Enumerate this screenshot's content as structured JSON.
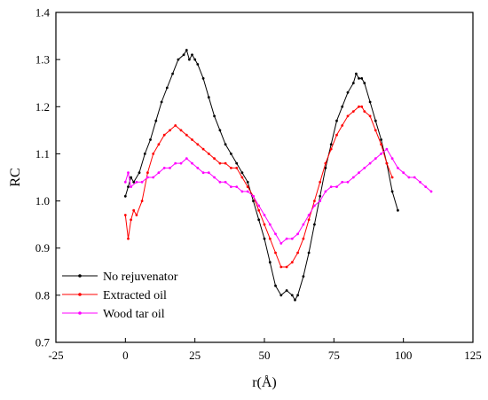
{
  "chart_data": {
    "type": "line",
    "title": "",
    "xlabel": "r(Å)",
    "ylabel": "RC",
    "xlim": [
      -25,
      125
    ],
    "ylim": [
      0.7,
      1.4
    ],
    "xticks": [
      "-25",
      "0",
      "25",
      "50",
      "75",
      "100",
      "125"
    ],
    "yticks": [
      "0.7",
      "0.8",
      "0.9",
      "1.0",
      "1.1",
      "1.2",
      "1.3",
      "1.4"
    ],
    "grid": false,
    "legend": "bottom-left",
    "series": [
      {
        "name": "No rejuvenator",
        "color": "#000000",
        "x": [
          0,
          1,
          2,
          3,
          5,
          7,
          9,
          11,
          13,
          15,
          17,
          19,
          21,
          22,
          23,
          24,
          25,
          26,
          28,
          30,
          32,
          34,
          36,
          38,
          40,
          42,
          44,
          46,
          48,
          50,
          52,
          54,
          56,
          58,
          60,
          61,
          62,
          64,
          66,
          68,
          70,
          72,
          74,
          76,
          78,
          80,
          82,
          83,
          84,
          85,
          86,
          88,
          90,
          92,
          94,
          96,
          98
        ],
        "y": [
          1.01,
          1.03,
          1.05,
          1.04,
          1.06,
          1.1,
          1.13,
          1.17,
          1.21,
          1.24,
          1.27,
          1.3,
          1.31,
          1.32,
          1.3,
          1.31,
          1.3,
          1.29,
          1.26,
          1.22,
          1.18,
          1.15,
          1.12,
          1.1,
          1.08,
          1.06,
          1.04,
          1.0,
          0.96,
          0.92,
          0.87,
          0.82,
          0.8,
          0.81,
          0.8,
          0.79,
          0.8,
          0.84,
          0.89,
          0.95,
          1.01,
          1.07,
          1.12,
          1.17,
          1.2,
          1.23,
          1.25,
          1.27,
          1.26,
          1.26,
          1.25,
          1.21,
          1.17,
          1.13,
          1.08,
          1.02,
          0.98
        ]
      },
      {
        "name": "Extracted oil",
        "color": "#ff0000",
        "x": [
          0,
          1,
          2,
          3,
          4,
          6,
          8,
          10,
          12,
          14,
          16,
          18,
          20,
          22,
          24,
          26,
          28,
          30,
          32,
          34,
          36,
          38,
          40,
          42,
          44,
          46,
          48,
          50,
          52,
          54,
          56,
          58,
          60,
          62,
          64,
          66,
          68,
          70,
          72,
          74,
          76,
          78,
          80,
          82,
          84,
          85,
          86,
          88,
          90,
          92,
          94,
          96
        ],
        "y": [
          0.97,
          0.92,
          0.96,
          0.98,
          0.97,
          1.0,
          1.06,
          1.1,
          1.12,
          1.14,
          1.15,
          1.16,
          1.15,
          1.14,
          1.13,
          1.12,
          1.11,
          1.1,
          1.09,
          1.08,
          1.08,
          1.07,
          1.07,
          1.05,
          1.03,
          1.01,
          0.98,
          0.95,
          0.92,
          0.89,
          0.86,
          0.86,
          0.87,
          0.89,
          0.92,
          0.96,
          1.0,
          1.04,
          1.08,
          1.11,
          1.14,
          1.16,
          1.18,
          1.19,
          1.2,
          1.2,
          1.19,
          1.18,
          1.15,
          1.12,
          1.08,
          1.05
        ]
      },
      {
        "name": "Wood tar oil",
        "color": "#ff00ff",
        "x": [
          0,
          1,
          2,
          4,
          6,
          8,
          10,
          12,
          14,
          16,
          18,
          20,
          22,
          24,
          26,
          28,
          30,
          32,
          34,
          36,
          38,
          40,
          42,
          44,
          46,
          48,
          50,
          52,
          54,
          56,
          58,
          60,
          62,
          64,
          66,
          68,
          70,
          72,
          74,
          76,
          78,
          80,
          82,
          84,
          86,
          88,
          90,
          92,
          94,
          96,
          98,
          100,
          102,
          104,
          106,
          108,
          110
        ],
        "y": [
          1.04,
          1.06,
          1.03,
          1.04,
          1.04,
          1.05,
          1.05,
          1.06,
          1.07,
          1.07,
          1.08,
          1.08,
          1.09,
          1.08,
          1.07,
          1.06,
          1.06,
          1.05,
          1.04,
          1.04,
          1.03,
          1.03,
          1.02,
          1.02,
          1.01,
          0.99,
          0.97,
          0.95,
          0.93,
          0.91,
          0.92,
          0.92,
          0.93,
          0.95,
          0.97,
          0.99,
          1.0,
          1.02,
          1.03,
          1.03,
          1.04,
          1.04,
          1.05,
          1.06,
          1.07,
          1.08,
          1.09,
          1.1,
          1.11,
          1.09,
          1.07,
          1.06,
          1.05,
          1.05,
          1.04,
          1.03,
          1.02
        ]
      }
    ]
  }
}
